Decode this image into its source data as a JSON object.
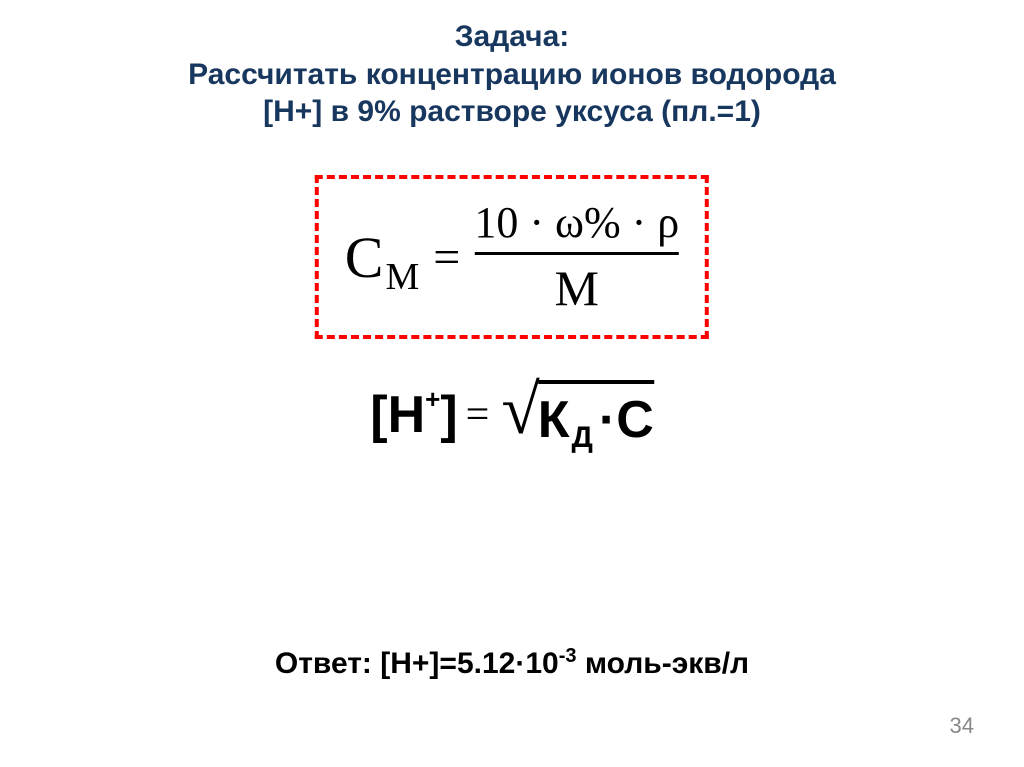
{
  "title": {
    "line1": "Задача:",
    "line2": "Рассчитать концентрацию ионов водорода",
    "line3": "[H+] в 9% растворе уксуса (пл.=1)",
    "color": "#17375e",
    "fontsize": 30
  },
  "formula1": {
    "left_base": "C",
    "left_sub": "М",
    "eq": "=",
    "numerator": "10 · ω% · ρ",
    "denominator": "M",
    "border_color": "#ff0000",
    "border_style": "dashed"
  },
  "formula2": {
    "left_open": "[H",
    "left_sup": "+",
    "left_close": "]",
    "eq": "=",
    "rad_base": "К",
    "rad_sub": "Д",
    "rad_mul": " ·С"
  },
  "answer": {
    "prefix": "Ответ: [H+]=5.12·10",
    "exp": "-3",
    "suffix": " моль-экв/л"
  },
  "page_number": "34"
}
